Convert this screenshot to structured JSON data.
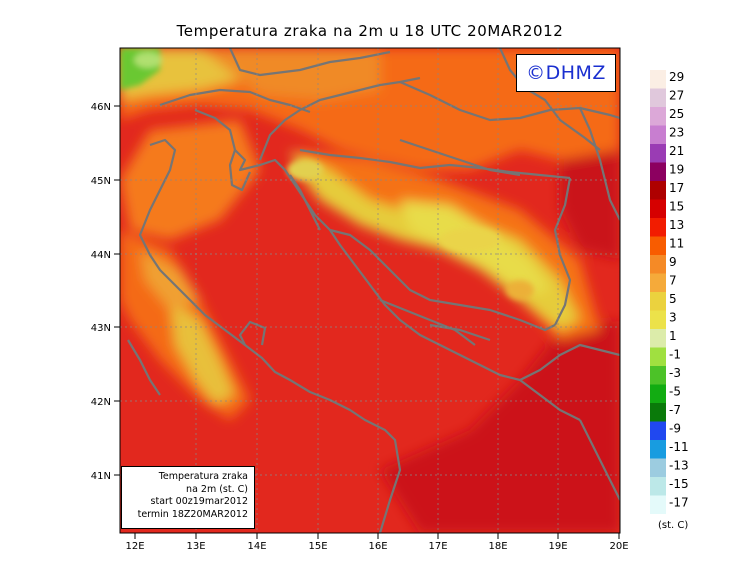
{
  "title": "Temperatura zraka na 2m u 18 UTC 20MAR2012",
  "logo": "©DHMZ",
  "info_box": {
    "line1": "Temperatura zraka",
    "line2": "na 2m (st. C)",
    "line3": "start 00z19mar2012",
    "line4": "termin 18Z20MAR2012"
  },
  "x_ticks": [
    "12E",
    "13E",
    "14E",
    "15E",
    "16E",
    "17E",
    "18E",
    "19E",
    "20E"
  ],
  "y_ticks": [
    "46N",
    "45N",
    "44N",
    "43N",
    "42N",
    "41N"
  ],
  "legend": {
    "units": "(st. C)",
    "labels": [
      "29",
      "27",
      "25",
      "23",
      "21",
      "19",
      "17",
      "15",
      "13",
      "11",
      "9",
      "7",
      "5",
      "3",
      "1",
      "-1",
      "-3",
      "-5",
      "-7",
      "-9",
      "-11",
      "-13",
      "-15",
      "-17"
    ],
    "colors": [
      "#fbeee4",
      "#e0c8dc",
      "#dca8d8",
      "#c87ed0",
      "#9a3cb4",
      "#8c0060",
      "#ae0000",
      "#d60000",
      "#f21c00",
      "#f85c00",
      "#f58a26",
      "#f5aa3a",
      "#ebd23e",
      "#ece24a",
      "#dcecaa",
      "#a0e040",
      "#4cc228",
      "#12ac12",
      "#0a7a0a",
      "#2048f0",
      "#189ce0",
      "#9ccce0",
      "#bce8e8",
      "#e4fafa"
    ]
  },
  "colors": {
    "map_background": "#e2281e",
    "coastline": "#757575",
    "grid": "#888888"
  }
}
